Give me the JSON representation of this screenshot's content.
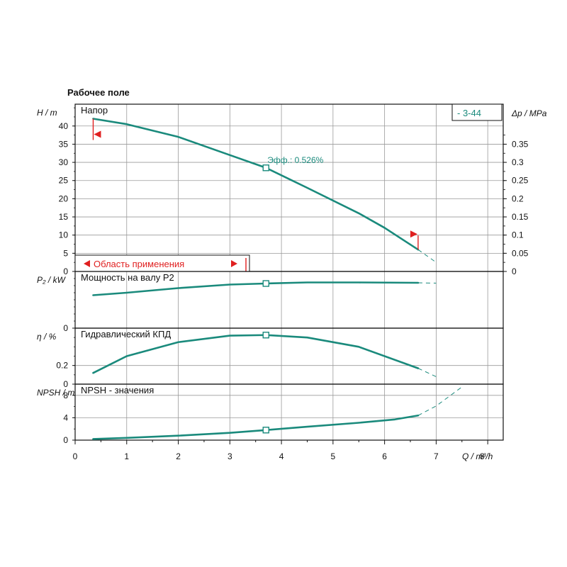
{
  "title": "Рабочее поле",
  "colors": {
    "curve": "#1a8a7c",
    "accent": "#e02020",
    "grid": "#9a9a9a",
    "frame": "#111111",
    "label_teal": "#1a8a7c"
  },
  "badge": "- 3-44",
  "region_label": "Область применения",
  "efficiency_label": "Эфф.: 0.526%",
  "x_axis": {
    "label": "Q / m³/h",
    "ticks": [
      "0",
      "1",
      "2",
      "3",
      "4",
      "5",
      "6",
      "7",
      "8"
    ]
  },
  "chart_data": [
    {
      "type": "line",
      "name": "head",
      "panel_label": "Напор",
      "ylabel": "H / m",
      "y2label": "Δp / MPa",
      "ylim": [
        0,
        46
      ],
      "yticks": [
        0,
        5,
        10,
        15,
        20,
        25,
        30,
        35,
        40
      ],
      "y2ticks": [
        0,
        0.05,
        0.1,
        0.15,
        0.2,
        0.25,
        0.3,
        0.35
      ],
      "x": [
        0.35,
        1.0,
        2.0,
        3.0,
        3.7,
        4.5,
        5.5,
        6.0,
        6.65
      ],
      "y": [
        42,
        40.5,
        37,
        32,
        28.5,
        23,
        16,
        12,
        6
      ],
      "ext_x": [
        6.65,
        7.0
      ],
      "ext_y": [
        6,
        2.5
      ],
      "op_point": {
        "x": 3.7,
        "y": 28.5
      },
      "range": {
        "q_min": 0.35,
        "q_max": 6.65
      }
    },
    {
      "type": "line",
      "name": "power",
      "panel_label": "Мощность на валу P2",
      "ylabel": "P₂ / kW",
      "ylim": [
        0,
        0.16
      ],
      "yticks": [
        0
      ],
      "x": [
        0.35,
        1.0,
        2.0,
        3.0,
        3.7,
        4.5,
        5.5,
        6.65
      ],
      "y": [
        0.093,
        0.1,
        0.113,
        0.123,
        0.126,
        0.129,
        0.129,
        0.128
      ],
      "ext_x": [
        6.65,
        7.0
      ],
      "ext_y": [
        0.128,
        0.127
      ],
      "op_point": {
        "x": 3.7,
        "y": 0.126
      }
    },
    {
      "type": "line",
      "name": "efficiency",
      "panel_label": "Гидравлический КПД",
      "ylabel": "η / %",
      "ylim": [
        0,
        0.6
      ],
      "yticks": [
        0,
        0.2
      ],
      "x": [
        0.35,
        1.0,
        2.0,
        3.0,
        3.7,
        4.5,
        5.5,
        6.65
      ],
      "y": [
        0.12,
        0.3,
        0.45,
        0.52,
        0.526,
        0.5,
        0.4,
        0.17
      ],
      "ext_x": [
        6.65,
        7.0
      ],
      "ext_y": [
        0.17,
        0.08
      ],
      "op_point": {
        "x": 3.7,
        "y": 0.526
      }
    },
    {
      "type": "line",
      "name": "npsh",
      "panel_label": "NPSH - значения",
      "ylabel": "NPSH / m",
      "ylim": [
        0,
        10
      ],
      "yticks": [
        0,
        4,
        8
      ],
      "x": [
        0.35,
        1.0,
        2.0,
        3.0,
        3.7,
        4.5,
        5.5,
        6.2,
        6.65
      ],
      "y": [
        0.2,
        0.4,
        0.8,
        1.3,
        1.8,
        2.4,
        3.1,
        3.7,
        4.4
      ],
      "ext_x": [
        6.65,
        7.0,
        7.5
      ],
      "ext_y": [
        4.4,
        6.1,
        9.5
      ],
      "op_point": {
        "x": 3.7,
        "y": 1.8
      }
    }
  ]
}
